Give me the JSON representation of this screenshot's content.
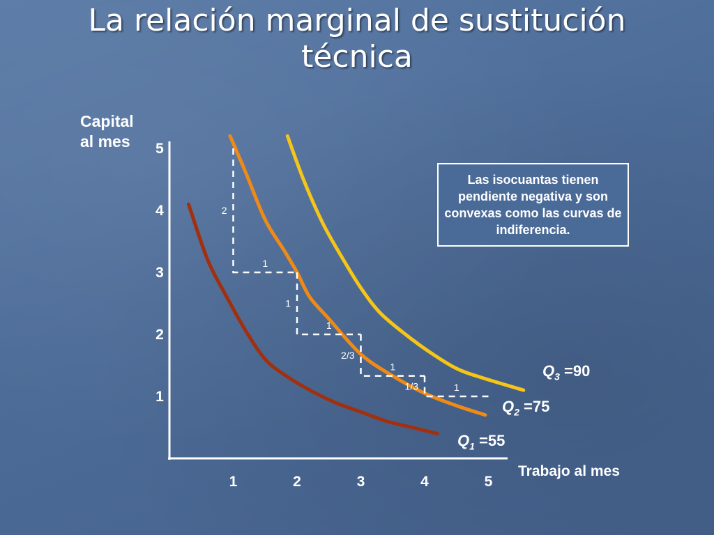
{
  "slide": {
    "title_line1": "La relación marginal de sustitución",
    "title_line2": "técnica"
  },
  "chart_data": {
    "type": "line",
    "ylabel_line1": "Capital",
    "ylabel_line2": "al mes",
    "xlabel": "Trabajo al mes",
    "xlim": [
      0,
      5.3
    ],
    "ylim": [
      0,
      5
    ],
    "x_ticks": [
      "1",
      "2",
      "3",
      "4",
      "5"
    ],
    "y_ticks": [
      "1",
      "2",
      "3",
      "4",
      "5"
    ],
    "series": [
      {
        "name_letter": "Q",
        "name_sub": "1",
        "name_value": "=55",
        "color": "#a1300e",
        "x": [
          0.3,
          0.6,
          0.9,
          1.2,
          1.5,
          1.8,
          2.2,
          2.6,
          3.0,
          3.4,
          3.8,
          4.2
        ],
        "y": [
          4.1,
          3.2,
          2.6,
          2.05,
          1.6,
          1.35,
          1.1,
          0.9,
          0.75,
          0.6,
          0.5,
          0.4
        ]
      },
      {
        "name_letter": "Q",
        "name_sub": "2",
        "name_value": "=75",
        "color": "#f08a16",
        "x": [
          0.95,
          1.2,
          1.5,
          1.8,
          2.0,
          2.2,
          2.5,
          3.0,
          3.5,
          4.0,
          4.5,
          4.95
        ],
        "y": [
          5.2,
          4.6,
          3.85,
          3.35,
          3.0,
          2.6,
          2.25,
          1.68,
          1.33,
          1.05,
          0.85,
          0.7
        ]
      },
      {
        "name_letter": "Q",
        "name_sub": "3",
        "name_value": "=90",
        "color": "#f5c518",
        "x": [
          1.85,
          2.1,
          2.4,
          2.7,
          3.0,
          3.3,
          3.7,
          4.1,
          4.5,
          4.9,
          5.55
        ],
        "y": [
          5.2,
          4.5,
          3.8,
          3.25,
          2.75,
          2.35,
          2.0,
          1.7,
          1.45,
          1.3,
          1.1
        ]
      }
    ],
    "steps": [
      {
        "x1": 1,
        "x2": 2,
        "y1": 5,
        "y2": 3,
        "dy_label": "2",
        "dx_label": "1"
      },
      {
        "x1": 2,
        "x2": 3,
        "y1": 3,
        "y2": 2,
        "dy_label": "1",
        "dx_label": "1"
      },
      {
        "x1": 3,
        "x2": 4,
        "y1": 2,
        "y2": 1.33,
        "dy_label": "2/3",
        "dx_label": "1"
      },
      {
        "x1": 4,
        "x2": 5,
        "y1": 1.33,
        "y2": 1,
        "dy_label": "1/3",
        "dx_label": "1"
      }
    ],
    "annotation": "Las isocuantas tienen pendiente negativa y son convexas como las curvas de indiferencia."
  }
}
